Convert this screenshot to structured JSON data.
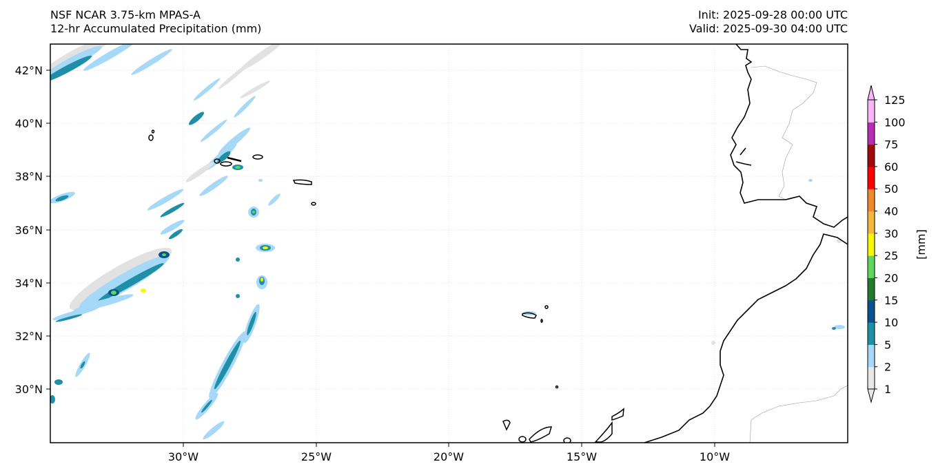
{
  "header": {
    "model": "NSF NCAR 3.75-km MPAS-A",
    "field": "12-hr Accumulated Precipitation (mm)",
    "init": "Init: 2025-09-28 00:00 UTC",
    "valid": "Valid: 2025-09-30 04:00 UTC"
  },
  "map": {
    "lon_ticks": [
      "30°W",
      "25°W",
      "20°W",
      "15°W",
      "10°W"
    ],
    "lat_ticks": [
      "42°N",
      "40°N",
      "38°N",
      "36°N",
      "34°N",
      "32°N",
      "30°N"
    ],
    "lon_range": [
      -35,
      -5
    ],
    "lat_range": [
      28,
      43
    ]
  },
  "colorbar": {
    "unit_label": "[mm]",
    "levels": [
      "1",
      "2",
      "5",
      "10",
      "15",
      "20",
      "25",
      "30",
      "40",
      "50",
      "60",
      "75",
      "100",
      "125"
    ],
    "colors": [
      "#e8e8e8",
      "#a6d8f7",
      "#1f8fa8",
      "#08528f",
      "#237a2b",
      "#5fd65f",
      "#f8f800",
      "#f5b83a",
      "#f08a2a",
      "#ff0000",
      "#a10a0a",
      "#b52db5",
      "#f7b7f7"
    ]
  },
  "colors": {
    "light_gray": "#e2e2e2",
    "light_blue": "#a6d8f7",
    "teal": "#1f8fa8",
    "navy": "#08528f",
    "green": "#5fd65f",
    "yellow": "#f8f800"
  }
}
